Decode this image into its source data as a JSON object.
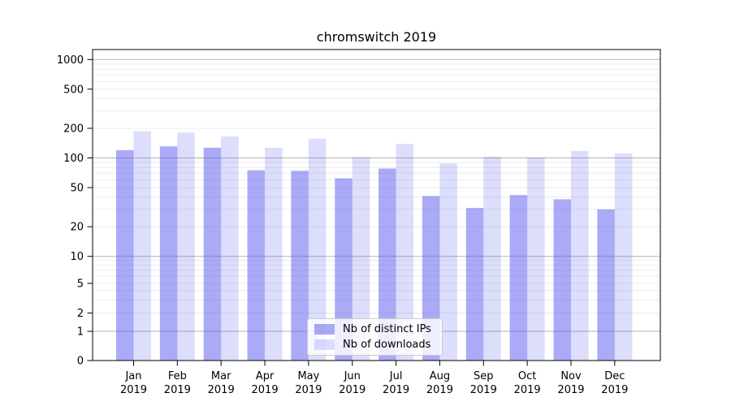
{
  "title": "chromswitch 2019",
  "chart_data": {
    "type": "bar",
    "title": "chromswitch 2019",
    "categories": [
      "Jan 2019",
      "Feb 2019",
      "Mar 2019",
      "Apr 2019",
      "May 2019",
      "Jun 2019",
      "Jul 2019",
      "Aug 2019",
      "Sep 2019",
      "Oct 2019",
      "Nov 2019",
      "Dec 2019"
    ],
    "x_tick_months": [
      "Jan",
      "Feb",
      "Mar",
      "Apr",
      "May",
      "Jun",
      "Jul",
      "Aug",
      "Sep",
      "Oct",
      "Nov",
      "Dec"
    ],
    "x_tick_year": "2019",
    "series": [
      {
        "name": "Nb of distinct IPs",
        "color": "rgba(85,85,238,0.5)",
        "values": [
          120,
          131,
          127,
          75,
          74,
          62,
          78,
          41,
          31,
          42,
          38,
          30
        ]
      },
      {
        "name": "Nb of downloads",
        "color": "rgba(85,85,238,0.2)",
        "values": [
          187,
          181,
          165,
          127,
          157,
          102,
          139,
          88,
          103,
          101,
          118,
          111
        ]
      }
    ],
    "xlabel": "",
    "ylabel": "",
    "yscale": "symlog",
    "yticks": [
      0,
      1,
      2,
      5,
      10,
      20,
      50,
      100,
      200,
      500,
      1000
    ],
    "ylim": [
      0,
      1263
    ],
    "grid": true,
    "legend_position": "lower center",
    "colors": {
      "bar_base": "#5555EE",
      "grid_major": "#b3b3b3",
      "grid_minor": "#ebebeb",
      "spine": "#000000",
      "background": "#ffffff"
    }
  }
}
